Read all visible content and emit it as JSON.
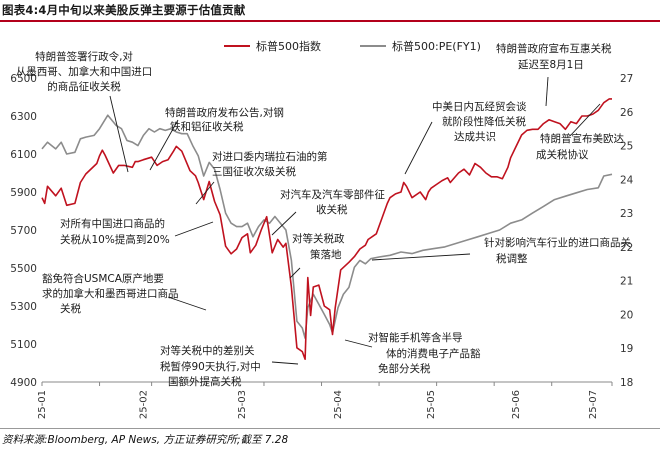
{
  "title": "图表4:4月中旬以来美股反弹主要源于估值贡献",
  "source": "资料来源:Bloomberg, AP News, 方正证券研究所;截至 7.28",
  "chart_data": {
    "type": "line",
    "legend": {
      "placement": "top-center"
    },
    "y_left": {
      "ticks": [
        4900,
        5100,
        5300,
        5500,
        5700,
        5900,
        6100,
        6300,
        6500
      ],
      "range": [
        4900,
        6500
      ]
    },
    "y_right": {
      "ticks": [
        18,
        19,
        20,
        21,
        22,
        23,
        24,
        25,
        26,
        27
      ],
      "range": [
        18,
        27
      ]
    },
    "x_ticks": [
      "25-01",
      "25-02",
      "25-03",
      "25-04",
      "25-05",
      "25-06",
      "25-07"
    ],
    "series": [
      {
        "name": "标普500指数",
        "axis": "left",
        "color": "#c0121f",
        "points": [
          [
            1,
            5870
          ],
          [
            2,
            5840
          ],
          [
            3,
            5930
          ],
          [
            6,
            5880
          ],
          [
            8,
            5920
          ],
          [
            10,
            5830
          ],
          [
            13,
            5840
          ],
          [
            15,
            5950
          ],
          [
            17,
            5995
          ],
          [
            21,
            6050
          ],
          [
            22,
            6090
          ],
          [
            23,
            6120
          ],
          [
            24,
            6095
          ],
          [
            27,
            6000
          ],
          [
            29,
            6040
          ],
          [
            31,
            6040
          ],
          [
            34,
            6030
          ],
          [
            35,
            6060
          ],
          [
            36,
            6060
          ],
          [
            38,
            6070
          ],
          [
            41,
            6083
          ],
          [
            43,
            6040
          ],
          [
            45,
            6060
          ],
          [
            47,
            6070
          ],
          [
            49,
            6115
          ],
          [
            50,
            6140
          ],
          [
            52,
            6115
          ],
          [
            55,
            6012
          ],
          [
            57,
            5985
          ],
          [
            58,
            5950
          ],
          [
            60,
            5860
          ],
          [
            62,
            5955
          ],
          [
            64,
            5850
          ],
          [
            66,
            5780
          ],
          [
            68,
            5615
          ],
          [
            70,
            5575
          ],
          [
            72,
            5600
          ],
          [
            74,
            5660
          ],
          [
            76,
            5680
          ],
          [
            77,
            5580
          ],
          [
            79,
            5620
          ],
          [
            81,
            5700
          ],
          [
            83,
            5770
          ],
          [
            85,
            5580
          ],
          [
            87,
            5650
          ],
          [
            89,
            5610
          ],
          [
            90,
            5630
          ],
          [
            92,
            5400
          ],
          [
            94,
            5080
          ],
          [
            96,
            5060
          ],
          [
            97,
            5020
          ],
          [
            98,
            5450
          ],
          [
            99,
            5250
          ],
          [
            100,
            5400
          ],
          [
            102,
            5410
          ],
          [
            104,
            5300
          ],
          [
            106,
            5280
          ],
          [
            107,
            5150
          ],
          [
            108,
            5290
          ],
          [
            110,
            5490
          ],
          [
            113,
            5530
          ],
          [
            115,
            5560
          ],
          [
            117,
            5600
          ],
          [
            119,
            5620
          ],
          [
            120,
            5650
          ],
          [
            123,
            5680
          ],
          [
            125,
            5760
          ],
          [
            127,
            5840
          ],
          [
            128,
            5870
          ],
          [
            130,
            5890
          ],
          [
            132,
            5900
          ],
          [
            133,
            5950
          ],
          [
            134,
            5930
          ],
          [
            136,
            5870
          ],
          [
            139,
            5900
          ],
          [
            141,
            5860
          ],
          [
            142,
            5900
          ],
          [
            143,
            5920
          ],
          [
            145,
            5940
          ],
          [
            147,
            5960
          ],
          [
            149,
            5975
          ],
          [
            150,
            5950
          ],
          [
            153,
            6000
          ],
          [
            155,
            6020
          ],
          [
            157,
            5990
          ],
          [
            159,
            6050
          ],
          [
            161,
            6030
          ],
          [
            163,
            6000
          ],
          [
            165,
            5980
          ],
          [
            167,
            5980
          ],
          [
            169,
            5970
          ],
          [
            171,
            6030
          ],
          [
            172,
            6080
          ],
          [
            174,
            6140
          ],
          [
            176,
            6200
          ],
          [
            178,
            6225
          ],
          [
            180,
            6230
          ],
          [
            182,
            6230
          ],
          [
            184,
            6260
          ],
          [
            186,
            6280
          ],
          [
            188,
            6270
          ],
          [
            190,
            6260
          ],
          [
            192,
            6230
          ],
          [
            194,
            6270
          ],
          [
            196,
            6260
          ],
          [
            198,
            6300
          ],
          [
            200,
            6300
          ],
          [
            202,
            6310
          ],
          [
            204,
            6330
          ],
          [
            206,
            6370
          ],
          [
            208,
            6390
          ],
          [
            209,
            6390
          ]
        ]
      },
      {
        "name": "标普500:PE(FY1)",
        "axis": "right",
        "color": "#8c8c8c",
        "points": [
          [
            1,
            24.9
          ],
          [
            3,
            25.1
          ],
          [
            6,
            24.9
          ],
          [
            8,
            25.1
          ],
          [
            10,
            24.75
          ],
          [
            13,
            24.8
          ],
          [
            15,
            25.2
          ],
          [
            17,
            25.25
          ],
          [
            20,
            25.3
          ],
          [
            22,
            25.5
          ],
          [
            25,
            25.9
          ],
          [
            28,
            25.6
          ],
          [
            30,
            25.5
          ],
          [
            32,
            25.15
          ],
          [
            34,
            25.1
          ],
          [
            36,
            25.0
          ],
          [
            38,
            25.3
          ],
          [
            40,
            25.5
          ],
          [
            42,
            25.4
          ],
          [
            44,
            25.5
          ],
          [
            46,
            25.45
          ],
          [
            48,
            25.5
          ],
          [
            50,
            25.4
          ],
          [
            52,
            25.35
          ],
          [
            54,
            25.35
          ],
          [
            56,
            25.0
          ],
          [
            58,
            24.7
          ],
          [
            60,
            24.1
          ],
          [
            62,
            24.5
          ],
          [
            64,
            24.3
          ],
          [
            66,
            23.7
          ],
          [
            68,
            23.0
          ],
          [
            70,
            22.7
          ],
          [
            72,
            22.6
          ],
          [
            74,
            22.6
          ],
          [
            76,
            22.7
          ],
          [
            78,
            22.3
          ],
          [
            80,
            22.6
          ],
          [
            82,
            22.8
          ],
          [
            84,
            22.7
          ],
          [
            86,
            22.9
          ],
          [
            88,
            22.7
          ],
          [
            90,
            22.5
          ],
          [
            92,
            21.6
          ],
          [
            94,
            19.8
          ],
          [
            96,
            19.6
          ],
          [
            97,
            19.3
          ],
          [
            98,
            20.2
          ],
          [
            100,
            20.6
          ],
          [
            102,
            20.3
          ],
          [
            104,
            20.0
          ],
          [
            106,
            19.7
          ],
          [
            107,
            19.45
          ],
          [
            109,
            20.2
          ],
          [
            111,
            20.6
          ],
          [
            113,
            20.8
          ],
          [
            115,
            21.4
          ],
          [
            117,
            21.6
          ],
          [
            119,
            21.5
          ],
          [
            121,
            21.65
          ],
          [
            124,
            21.7
          ],
          [
            128,
            21.75
          ],
          [
            132,
            21.85
          ],
          [
            136,
            21.8
          ],
          [
            140,
            21.9
          ],
          [
            144,
            21.95
          ],
          [
            148,
            22.0
          ],
          [
            152,
            22.1
          ],
          [
            156,
            22.2
          ],
          [
            160,
            22.3
          ],
          [
            164,
            22.4
          ],
          [
            168,
            22.5
          ],
          [
            172,
            22.7
          ],
          [
            176,
            22.8
          ],
          [
            180,
            23.0
          ],
          [
            184,
            23.2
          ],
          [
            188,
            23.4
          ],
          [
            192,
            23.5
          ],
          [
            196,
            23.6
          ],
          [
            200,
            23.7
          ],
          [
            204,
            23.75
          ],
          [
            206,
            24.1
          ],
          [
            209,
            24.15
          ]
        ]
      }
    ],
    "annotations": [
      "特朗普签署行政令,对从墨西哥、加拿大和中国进口的商品征收关税",
      "特朗普政府发布公告,对钢铁和铝征收关税",
      "对进口委内瑞拉石油的第三国征收次级关税",
      "对所有中国进口商品的关税从10%提高到20%",
      "对汽车及汽车零部件征收关税",
      "对等关税政策落地",
      "豁免符合USMCA原产地要求的加拿大和墨西哥进口商品关税",
      "对等关税中的差别关税暂停90天执行,对中国额外提高关税",
      "对智能手机等含半导体的消费电子产品豁免部分关税",
      "中美日内瓦经贸会谈就阶段性降低关税达成共识",
      "特朗普政府宣布互惠关税延迟至8月1日",
      "特朗普宣布美欧达成关税协议",
      "针对影响汽车行业的进口商品关税调整"
    ]
  }
}
